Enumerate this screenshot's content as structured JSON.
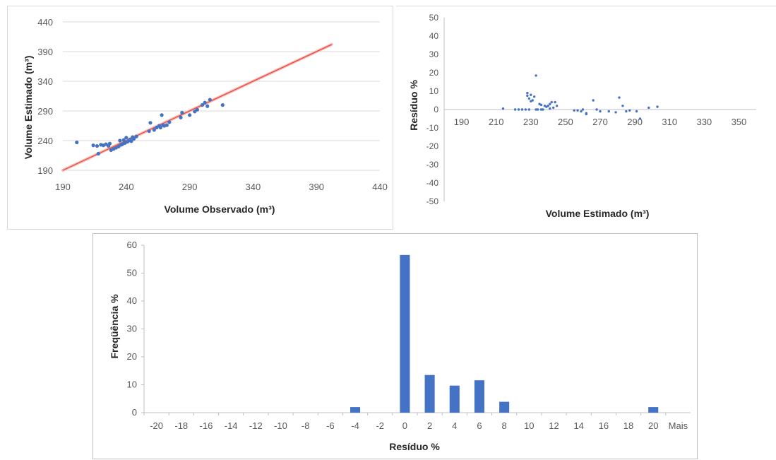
{
  "chart_data": [
    {
      "type": "scatter",
      "xlabel": "Volume Observado (m³)",
      "ylabel": "Volume Estimado (m³)",
      "xlim": [
        190,
        440
      ],
      "ylim": [
        190,
        440
      ],
      "xticks": [
        "190",
        "240",
        "290",
        "340",
        "390",
        "440"
      ],
      "yticks": [
        "190",
        "240",
        "290",
        "340",
        "390",
        "440"
      ],
      "grid": "horizontal",
      "colors": {
        "points": "#4472c4",
        "line": "#e8443a",
        "grid": "#d9d9d9"
      },
      "series": [
        {
          "points": [
            [
              201,
              237
            ],
            [
              214,
              232
            ],
            [
              217,
              231
            ],
            [
              218,
              218
            ],
            [
              220,
              233
            ],
            [
              222,
              232
            ],
            [
              224,
              234
            ],
            [
              226,
              231
            ],
            [
              227,
              235
            ],
            [
              228,
              224
            ],
            [
              230,
              226
            ],
            [
              232,
              228
            ],
            [
              234,
              230
            ],
            [
              235,
              240
            ],
            [
              236,
              233
            ],
            [
              237,
              234
            ],
            [
              238,
              241
            ],
            [
              239,
              236
            ],
            [
              240,
              245
            ],
            [
              241,
              238
            ],
            [
              242,
              240
            ],
            [
              243,
              242
            ],
            [
              244,
              239
            ],
            [
              245,
              246
            ],
            [
              246,
              243
            ],
            [
              248,
              247
            ],
            [
              258,
              256
            ],
            [
              259,
              270
            ],
            [
              262,
              258
            ],
            [
              264,
              262
            ],
            [
              266,
              265
            ],
            [
              267,
              262
            ],
            [
              268,
              283
            ],
            [
              269,
              266
            ],
            [
              270,
              265
            ],
            [
              272,
              266
            ],
            [
              274,
              271
            ],
            [
              283,
              279
            ],
            [
              284,
              287
            ],
            [
              290,
              283
            ],
            [
              294,
              289
            ],
            [
              296,
              292
            ],
            [
              300,
              300
            ],
            [
              302,
              304
            ],
            [
              304,
              298
            ],
            [
              306,
              309
            ],
            [
              316,
              300
            ]
          ]
        }
      ],
      "fit_line": {
        "x": [
          190,
          402
        ],
        "y": [
          190,
          402
        ]
      }
    },
    {
      "type": "scatter",
      "xlabel": "Volume Estimado (m³)",
      "ylabel": "Resíduo %",
      "xlim": [
        180,
        360
      ],
      "ylim": [
        -50,
        50
      ],
      "xticks": [
        "190",
        "210",
        "230",
        "250",
        "270",
        "290",
        "310",
        "330",
        "350"
      ],
      "yticks": [
        "50",
        "40",
        "30",
        "20",
        "10",
        "0",
        "-10",
        "-20",
        "-30",
        "-40",
        "-50"
      ],
      "colors": {
        "points": "#4472c4",
        "axis": "#bfbfbf"
      },
      "series": [
        {
          "points": [
            [
              214,
              0.5
            ],
            [
              221,
              0
            ],
            [
              223,
              0
            ],
            [
              225,
              0
            ],
            [
              227,
              0
            ],
            [
              228,
              9
            ],
            [
              228,
              7.5
            ],
            [
              229,
              6
            ],
            [
              229,
              0
            ],
            [
              230,
              4.5
            ],
            [
              230,
              8
            ],
            [
              231,
              5
            ],
            [
              232,
              7
            ],
            [
              233,
              18.5
            ],
            [
              233,
              0
            ],
            [
              234,
              0
            ],
            [
              235,
              3
            ],
            [
              236,
              2.5
            ],
            [
              236,
              0
            ],
            [
              237,
              0
            ],
            [
              238,
              2
            ],
            [
              239,
              1.5
            ],
            [
              240,
              2
            ],
            [
              241,
              0.5
            ],
            [
              241,
              3
            ],
            [
              242,
              4
            ],
            [
              243,
              1
            ],
            [
              244,
              4
            ],
            [
              245,
              2
            ],
            [
              255,
              -0.5
            ],
            [
              257,
              -0.5
            ],
            [
              259,
              -1
            ],
            [
              260,
              0
            ],
            [
              262,
              -2
            ],
            [
              262,
              -2.5
            ],
            [
              266,
              5
            ],
            [
              268,
              0
            ],
            [
              270,
              -1
            ],
            [
              275,
              -1
            ],
            [
              279,
              -1.5
            ],
            [
              281,
              6.5
            ],
            [
              283,
              2
            ],
            [
              285,
              -1
            ],
            [
              287,
              -0.5
            ],
            [
              291,
              -1
            ],
            [
              293,
              -5
            ],
            [
              298,
              1
            ],
            [
              303,
              1.5
            ]
          ]
        }
      ]
    },
    {
      "type": "bar",
      "xlabel": "Resíduo %",
      "ylabel": "Freqüência %",
      "ylim": [
        0,
        60
      ],
      "yticks": [
        "0",
        "10",
        "20",
        "30",
        "40",
        "50",
        "60"
      ],
      "categories": [
        "-20",
        "-18",
        "-16",
        "-14",
        "-12",
        "-10",
        "-8",
        "-6",
        "-4",
        "-2",
        "0",
        "2",
        "4",
        "6",
        "8",
        "10",
        "12",
        "14",
        "16",
        "18",
        "20",
        "Mais"
      ],
      "values": [
        0,
        0,
        0,
        0,
        0,
        0,
        0,
        0,
        2,
        0,
        56.5,
        13.5,
        9.7,
        11.6,
        3.9,
        0,
        0,
        0,
        0,
        0,
        2,
        0
      ],
      "colors": {
        "bars": "#4472c4",
        "axis": "#bfbfbf"
      }
    }
  ]
}
